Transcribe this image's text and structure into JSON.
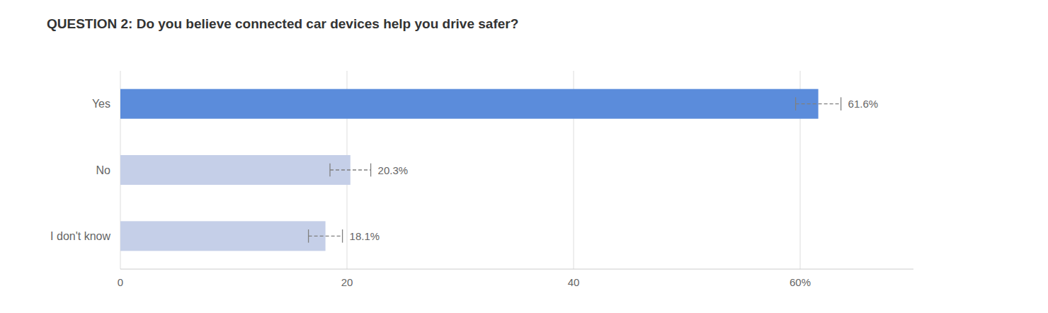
{
  "chart_data": {
    "type": "bar",
    "orientation": "horizontal",
    "title": "QUESTION 2: Do you believe connected car devices help you drive safer?",
    "categories": [
      "I don't know",
      "No",
      "Yes"
    ],
    "values": [
      18.1,
      20.3,
      61.6
    ],
    "errors": [
      1.5,
      1.8,
      2.0
    ],
    "value_labels": [
      "18.1%",
      "20.3%",
      "61.6%"
    ],
    "data_labels": true,
    "colors": [
      "#c5cfe8",
      "#c5cfe8",
      "#5b8cdb"
    ],
    "xlim": [
      0,
      70
    ],
    "xticks": [
      0,
      20,
      40,
      {
        "value": 60,
        "label": "60%"
      }
    ],
    "grid": true
  }
}
